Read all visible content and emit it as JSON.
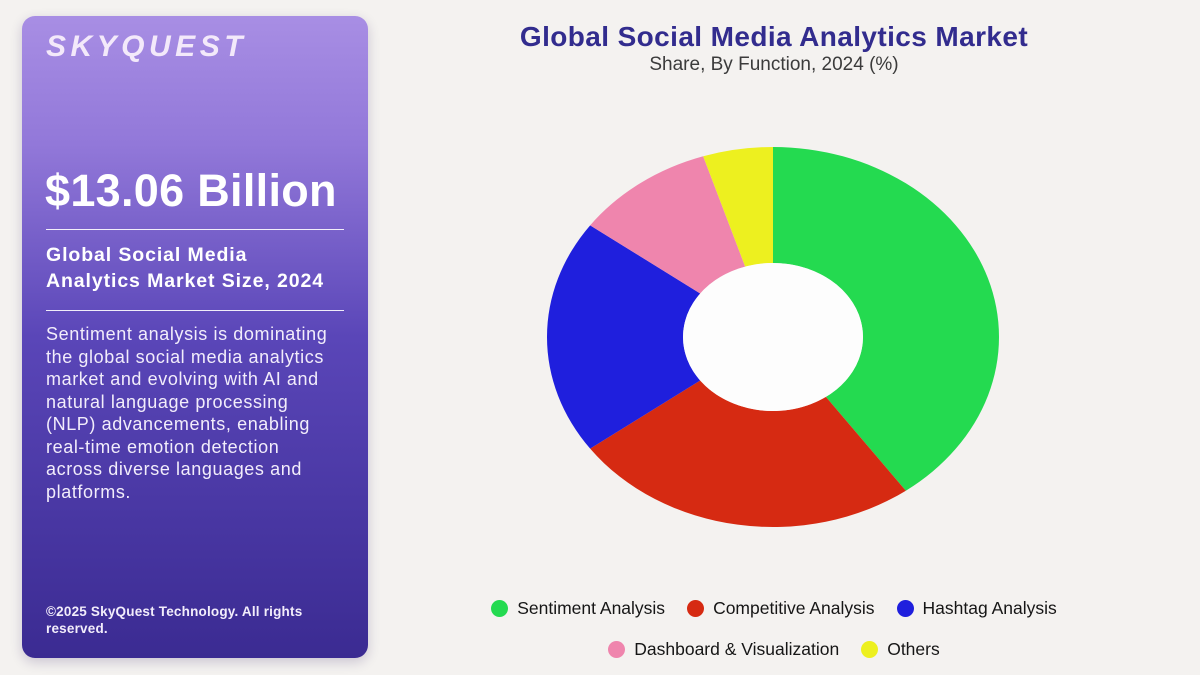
{
  "background_color": "#f4f2f0",
  "sidebar": {
    "logo": "SKYQUEST",
    "market_size": "$13.06 Billion",
    "market_label": "Global Social Media\nAnalytics Market Size, 2024",
    "description": "Sentiment analysis is dominating\nthe global social media analytics\nmarket and evolving with AI and\nnatural language processing\n(NLP) advancements, enabling\nreal-time emotion detection\nacross diverse languages and\nplatforms.",
    "copyright": "©2025 SkyQuest Technology. All rights reserved.",
    "gradient_top": "#a88ee4",
    "gradient_bottom": "#3b2b92"
  },
  "chart_data": {
    "type": "pie",
    "donut": true,
    "title": "Global Social Media Analytics Market",
    "subtitle": "Share, By Function, 2024 (%)",
    "title_color": "#322c8e",
    "categories": [
      "Sentiment Analysis",
      "Competitive Analysis",
      "Hashtag Analysis",
      "Dashboard & Visualization",
      "Others"
    ],
    "values": [
      40,
      25,
      20,
      10,
      5
    ],
    "colors": [
      "#24da50",
      "#d62a12",
      "#1f1fdd",
      "#ef85ad",
      "#edf01f"
    ],
    "hole_color": "#fdfdfd",
    "legend_position": "bottom",
    "legend_rows": [
      3,
      2
    ]
  }
}
